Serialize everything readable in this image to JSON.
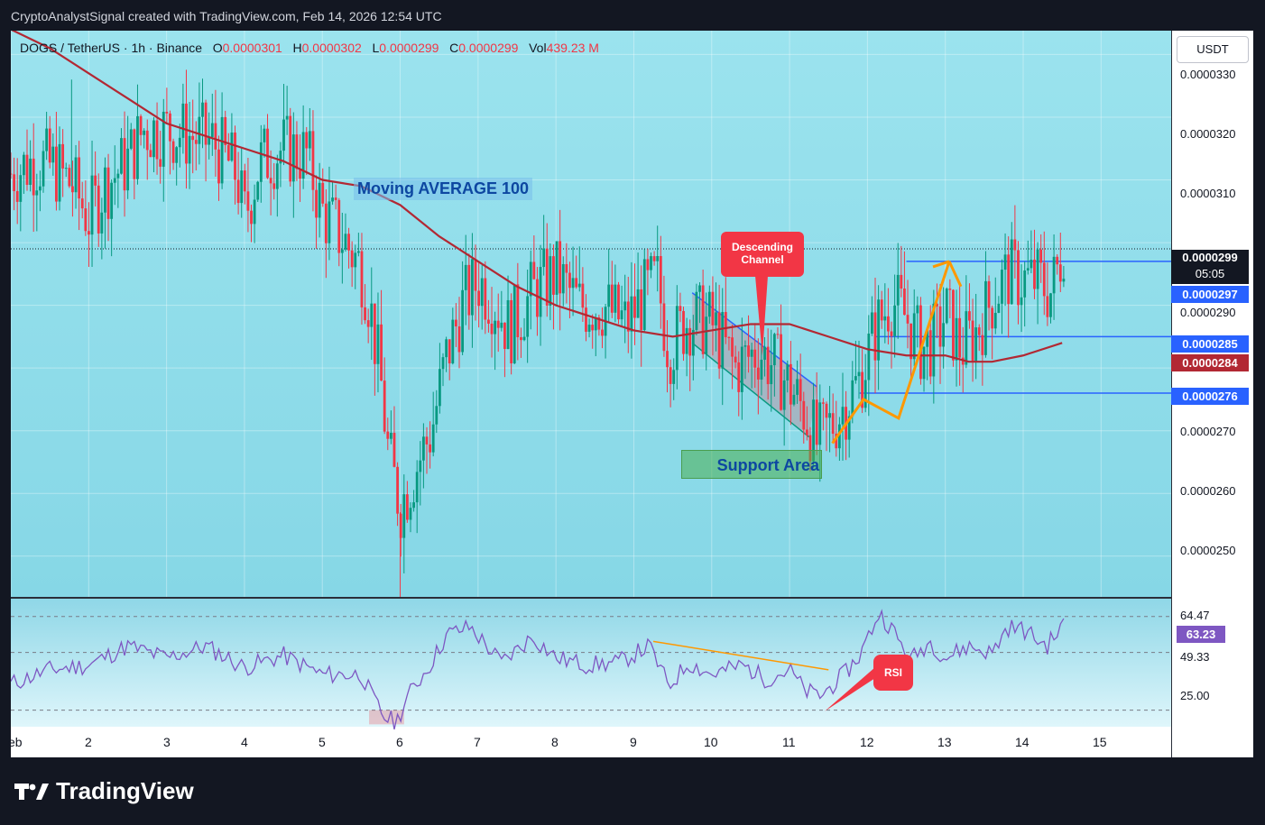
{
  "header": {
    "attribution": "CryptoAnalystSignal created with TradingView.com, Feb 14, 2026 12:54 UTC"
  },
  "legend": {
    "symbol": "DOGS / TetherUS · 1h · Binance",
    "o_label": "O",
    "o_value": "0.0000301",
    "h_label": "H",
    "h_value": "0.0000302",
    "l_label": "L",
    "l_value": "0.0000299",
    "c_label": "C",
    "c_value": "0.0000299",
    "vol_label": "Vol",
    "vol_value": "439.23 M"
  },
  "currency_button": "USDT",
  "annotations": {
    "ma_label": "Moving AVERAGE 100",
    "descending_channel": [
      "Descending",
      "Channel"
    ],
    "support_area": "Support Area",
    "rsi": "RSI"
  },
  "price_tags": [
    {
      "value": "0.0000299",
      "sub": "05:05",
      "color": "#131722"
    },
    {
      "value": "0.0000297",
      "color": "#2962ff"
    },
    {
      "value": "0.0000285",
      "color": "#2962ff"
    },
    {
      "value": "0.0000284",
      "color": "#b22833"
    },
    {
      "value": "0.0000276",
      "color": "#2962ff"
    }
  ],
  "rsi_axis": {
    "ticks": [
      "64.47",
      "49.33",
      "25.00"
    ],
    "current": "63.23",
    "current_color": "#7e57c2"
  },
  "footer": {
    "brand": "TradingView"
  },
  "colors": {
    "up": "#089981",
    "down": "#f23645",
    "ma": "#b22833",
    "arrow": "#ff9800",
    "level": "#2962ff",
    "rsi": "#7e57c2"
  },
  "chart_data": {
    "type": "candlestick",
    "x_ticks": [
      "eb",
      "2",
      "3",
      "4",
      "5",
      "6",
      "7",
      "8",
      "9",
      "10",
      "11",
      "12",
      "13",
      "14",
      "15"
    ],
    "x_range_days": [
      1,
      15.9
    ],
    "y_ticks": [
      "0.0000330",
      "0.0000320",
      "0.0000310",
      "0.0000290",
      "0.0000270",
      "0.0000260",
      "0.0000250"
    ],
    "ylim": [
      2.435e-05,
      3.338e-05
    ],
    "horizontal_levels": [
      2.97e-05,
      2.85e-05,
      2.76e-05
    ],
    "price_path": [
      [
        1.0,
        3.11e-05
      ],
      [
        1.3,
        3.13e-05
      ],
      [
        1.55,
        3.12e-05
      ],
      [
        1.8,
        3.09e-05
      ],
      [
        2.0,
        3.04e-05
      ],
      [
        2.2,
        3.09e-05
      ],
      [
        2.5,
        3.13e-05
      ],
      [
        2.7,
        3.18e-05
      ],
      [
        3.0,
        3.18e-05
      ],
      [
        3.3,
        3.17e-05
      ],
      [
        3.6,
        3.16e-05
      ],
      [
        3.9,
        3.11e-05
      ],
      [
        4.0,
        3.04e-05
      ],
      [
        4.2,
        3.13e-05
      ],
      [
        4.5,
        3.15e-05
      ],
      [
        4.8,
        3.14e-05
      ],
      [
        5.0,
        3.05e-05
      ],
      [
        5.3,
        3e-05
      ],
      [
        5.5,
        2.96e-05
      ],
      [
        5.6,
        2.91e-05
      ],
      [
        5.75,
        2.78e-05
      ],
      [
        5.85,
        2.66e-05
      ],
      [
        6.0,
        2.58e-05
      ],
      [
        6.2,
        2.64e-05
      ],
      [
        6.4,
        2.7e-05
      ],
      [
        6.6,
        2.82e-05
      ],
      [
        6.8,
        2.9e-05
      ],
      [
        7.0,
        2.94e-05
      ],
      [
        7.2,
        2.91e-05
      ],
      [
        7.4,
        2.86e-05
      ],
      [
        7.7,
        2.92e-05
      ],
      [
        8.0,
        2.95e-05
      ],
      [
        8.3,
        2.9e-05
      ],
      [
        8.6,
        2.9e-05
      ],
      [
        8.9,
        2.87e-05
      ],
      [
        9.1,
        2.91e-05
      ],
      [
        9.3,
        2.94e-05
      ],
      [
        9.45,
        2.83e-05
      ],
      [
        9.7,
        2.88e-05
      ],
      [
        10.0,
        2.87e-05
      ],
      [
        10.3,
        2.8e-05
      ],
      [
        10.6,
        2.83e-05
      ],
      [
        10.9,
        2.79e-05
      ],
      [
        11.2,
        2.73e-05
      ],
      [
        11.35,
        2.68e-05
      ],
      [
        11.6,
        2.72e-05
      ],
      [
        11.9,
        2.78e-05
      ],
      [
        12.1,
        2.86e-05
      ],
      [
        12.3,
        2.91e-05
      ],
      [
        12.5,
        2.88e-05
      ],
      [
        12.7,
        2.83e-05
      ],
      [
        12.9,
        2.85e-05
      ],
      [
        13.0,
        2.89e-05
      ],
      [
        13.2,
        2.83e-05
      ],
      [
        13.4,
        2.86e-05
      ],
      [
        13.6,
        2.91e-05
      ],
      [
        13.8,
        2.95e-05
      ],
      [
        14.0,
        2.94e-05
      ],
      [
        14.2,
        2.94e-05
      ],
      [
        14.35,
        2.92e-05
      ],
      [
        14.45,
        2.96e-05
      ],
      [
        14.52,
        3e-05
      ]
    ],
    "moving_average_100": [
      [
        1.0,
        3.34e-05
      ],
      [
        1.5,
        3.31e-05
      ],
      [
        2.0,
        3.27e-05
      ],
      [
        2.5,
        3.23e-05
      ],
      [
        3.0,
        3.19e-05
      ],
      [
        3.5,
        3.17e-05
      ],
      [
        4.0,
        3.15e-05
      ],
      [
        4.5,
        3.13e-05
      ],
      [
        5.0,
        3.1e-05
      ],
      [
        5.5,
        3.09e-05
      ],
      [
        6.0,
        3.06e-05
      ],
      [
        6.5,
        3.01e-05
      ],
      [
        7.0,
        2.97e-05
      ],
      [
        7.5,
        2.93e-05
      ],
      [
        8.0,
        2.9e-05
      ],
      [
        8.5,
        2.88e-05
      ],
      [
        9.0,
        2.86e-05
      ],
      [
        9.5,
        2.85e-05
      ],
      [
        10.0,
        2.86e-05
      ],
      [
        10.5,
        2.87e-05
      ],
      [
        11.0,
        2.87e-05
      ],
      [
        11.5,
        2.85e-05
      ],
      [
        12.0,
        2.83e-05
      ],
      [
        12.5,
        2.82e-05
      ],
      [
        13.0,
        2.82e-05
      ],
      [
        13.3,
        2.81e-05
      ],
      [
        13.6,
        2.81e-05
      ],
      [
        14.0,
        2.82e-05
      ],
      [
        14.5,
        2.84e-05
      ]
    ],
    "descending_channel": {
      "upper": [
        [
          9.75,
          2.92e-05
        ],
        [
          11.35,
          2.77e-05
        ]
      ],
      "lower": [
        [
          9.75,
          2.84e-05
        ],
        [
          11.25,
          2.69e-05
        ]
      ]
    },
    "projection_arrow": [
      [
        11.55,
        2.68e-05
      ],
      [
        11.95,
        2.75e-05
      ],
      [
        12.4,
        2.72e-05
      ],
      [
        13.05,
        2.97e-05
      ],
      [
        13.2,
        2.93e-05
      ]
    ],
    "rsi": {
      "ylim": [
        18,
        72
      ],
      "bands": [
        64.47,
        49.33,
        25.0
      ],
      "current": 63.23,
      "path": [
        [
          1.0,
          36
        ],
        [
          1.5,
          42
        ],
        [
          2.0,
          44
        ],
        [
          2.5,
          52
        ],
        [
          3.0,
          47
        ],
        [
          3.5,
          52
        ],
        [
          4.0,
          43
        ],
        [
          4.5,
          48
        ],
        [
          5.0,
          40
        ],
        [
          5.5,
          40
        ],
        [
          5.65,
          30
        ],
        [
          5.8,
          22
        ],
        [
          5.95,
          20
        ],
        [
          6.1,
          31
        ],
        [
          6.4,
          45
        ],
        [
          6.6,
          57
        ],
        [
          6.9,
          60
        ],
        [
          7.3,
          45
        ],
        [
          7.7,
          56
        ],
        [
          8.0,
          47
        ],
        [
          8.4,
          44
        ],
        [
          8.8,
          45
        ],
        [
          9.2,
          52
        ],
        [
          9.45,
          35
        ],
        [
          9.7,
          45
        ],
        [
          10.0,
          40
        ],
        [
          10.4,
          44
        ],
        [
          10.7,
          38
        ],
        [
          11.0,
          42
        ],
        [
          11.2,
          33
        ],
        [
          11.4,
          31
        ],
        [
          11.7,
          40
        ],
        [
          11.9,
          48
        ],
        [
          12.15,
          66
        ],
        [
          12.3,
          60
        ],
        [
          12.55,
          46
        ],
        [
          12.8,
          54
        ],
        [
          13.0,
          47
        ],
        [
          13.3,
          52
        ],
        [
          13.6,
          49
        ],
        [
          13.8,
          60
        ],
        [
          14.0,
          59
        ],
        [
          14.3,
          52
        ],
        [
          14.52,
          61
        ]
      ],
      "trendline": [
        [
          9.25,
          54
        ],
        [
          11.5,
          42
        ]
      ]
    }
  }
}
